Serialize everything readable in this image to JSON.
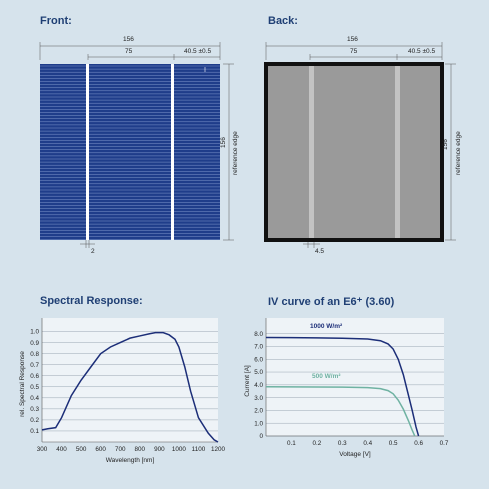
{
  "headers": {
    "front": "Front:",
    "back": "Back:",
    "spectral": "Spectral Response:",
    "iv": "IV curve of an E6⁺ (3.60)"
  },
  "dims": {
    "total": "156",
    "center": "75",
    "edge": "40.5 ±0.5",
    "height": "156",
    "reference": "reference edge",
    "front_busbar": "2",
    "back_busbar": "4.5"
  },
  "colors": {
    "background": "#d6e3ec",
    "cell_front": "#1f3d8a",
    "cell_back": "#9a9a9a",
    "heading": "#1f3f74",
    "curve_1000": "#1c2e78",
    "curve_500": "#6fb2a2"
  },
  "chart_data": [
    {
      "type": "line",
      "title": "Spectral Response:",
      "xlabel": "Wavelength [nm]",
      "ylabel": "rel. Spectral Response",
      "xlim": [
        300,
        1200
      ],
      "ylim": [
        0,
        1.05
      ],
      "xticks": [
        300,
        400,
        500,
        600,
        700,
        800,
        900,
        1000,
        1100,
        1200
      ],
      "yticks": [
        0.1,
        0.2,
        0.3,
        0.4,
        0.5,
        0.6,
        0.7,
        0.8,
        0.9,
        1.0
      ],
      "ytick_labels": [
        "0.1",
        "0.2",
        "0.3",
        "0.4",
        "0.5",
        "0.6",
        "0.7",
        "0.8",
        "0.9",
        "1.0"
      ],
      "grid": true,
      "series": [
        {
          "x": [
            300,
            330,
            370,
            400,
            450,
            500,
            550,
            600,
            650,
            700,
            750,
            800,
            850,
            880,
            920,
            950,
            980,
            1000,
            1030,
            1060,
            1100,
            1150,
            1180,
            1200
          ],
          "y": [
            0.11,
            0.12,
            0.13,
            0.22,
            0.42,
            0.56,
            0.68,
            0.8,
            0.86,
            0.9,
            0.94,
            0.96,
            0.98,
            0.99,
            0.99,
            0.97,
            0.93,
            0.86,
            0.68,
            0.46,
            0.22,
            0.08,
            0.02,
            0.0
          ]
        }
      ]
    },
    {
      "type": "line",
      "title": "IV curve of an E6⁺ (3.60)",
      "xlabel": "Voltage [V]",
      "ylabel": "Current [A]",
      "xlim": [
        0,
        0.7
      ],
      "ylim": [
        0,
        8.6
      ],
      "xticks": [
        0.1,
        0.2,
        0.3,
        0.4,
        0.5,
        0.6,
        0.7
      ],
      "xtick_labels": [
        "0.1",
        "0.2",
        "0.3",
        "0.4",
        "0.5",
        "0.6",
        "0.7"
      ],
      "yticks": [
        0,
        1,
        2,
        3,
        4,
        5,
        6,
        7,
        8
      ],
      "ytick_labels": [
        "0",
        "1.0",
        "2.0",
        "3.0",
        "4.0",
        "5.0",
        "6.0",
        "7.0",
        "8.0"
      ],
      "grid": true,
      "series": [
        {
          "name": "1000 W/m²",
          "color": "#1c2e78",
          "x": [
            0,
            0.1,
            0.2,
            0.3,
            0.4,
            0.45,
            0.48,
            0.5,
            0.52,
            0.54,
            0.56,
            0.575,
            0.59,
            0.6
          ],
          "y": [
            7.7,
            7.69,
            7.67,
            7.64,
            7.58,
            7.45,
            7.2,
            6.8,
            6.0,
            4.8,
            3.2,
            2.0,
            0.7,
            0.0
          ]
        },
        {
          "name": "500 W/m²",
          "color": "#6fb2a2",
          "x": [
            0,
            0.1,
            0.2,
            0.3,
            0.4,
            0.45,
            0.48,
            0.5,
            0.52,
            0.54,
            0.56,
            0.575,
            0.585
          ],
          "y": [
            3.85,
            3.84,
            3.83,
            3.82,
            3.78,
            3.7,
            3.55,
            3.3,
            2.8,
            2.1,
            1.2,
            0.45,
            0.0
          ]
        }
      ]
    }
  ]
}
